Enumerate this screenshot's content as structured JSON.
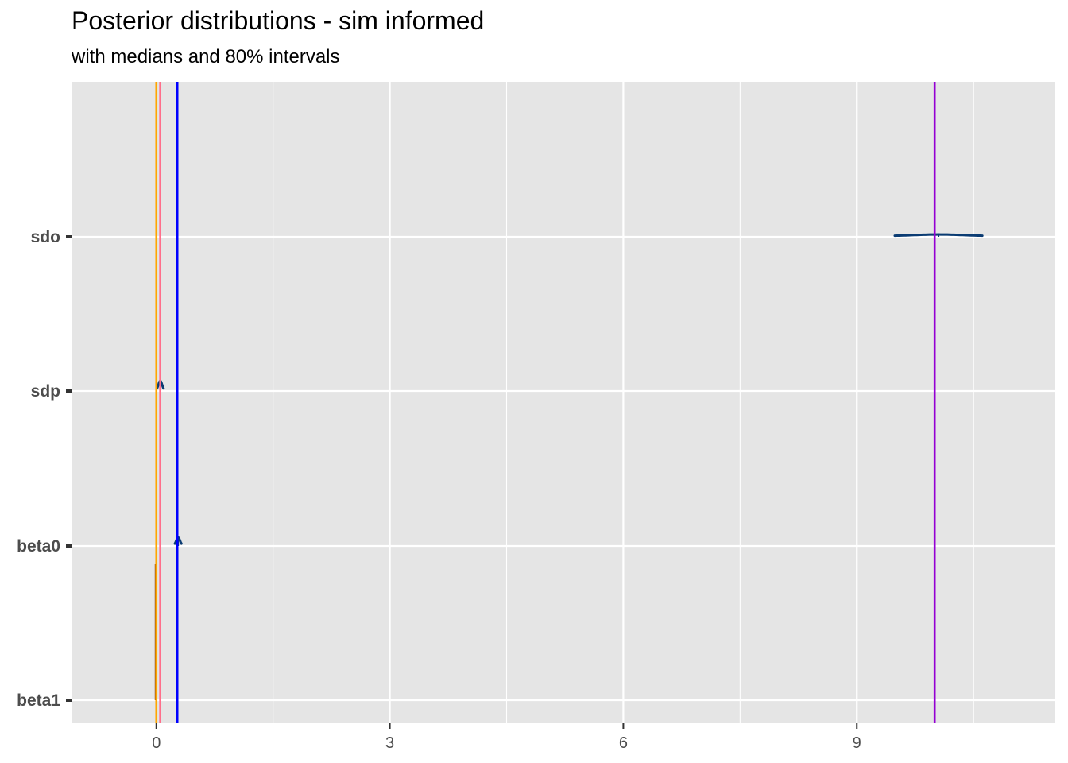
{
  "chart_data": {
    "type": "ridgeline",
    "title": "Posterior distributions - sim informed",
    "subtitle": "with medians and 80% intervals",
    "xlabel": "",
    "ylabel": "",
    "xlim": [
      -1.09,
      11.55
    ],
    "x_ticks": [
      0,
      3,
      6,
      9
    ],
    "x_minor_ticks": [
      1.5,
      4.5,
      7.5,
      10.5
    ],
    "grid": true,
    "parameters": [
      "sdo",
      "sdp",
      "beta0",
      "beta1"
    ],
    "distributions": [
      {
        "name": "sdo",
        "median": 10.05,
        "interval80": [
          9.6,
          10.4
        ],
        "height": 0.01
      },
      {
        "name": "sdp",
        "median": 0.05,
        "interval80": [
          0.02,
          0.08
        ],
        "height": 0.06
      },
      {
        "name": "beta0",
        "median": 0.28,
        "interval80": [
          0.25,
          0.31
        ],
        "height": 0.05
      },
      {
        "name": "beta1",
        "median": 0.0,
        "interval80": [
          -0.01,
          0.01
        ],
        "height": 0.9
      }
    ],
    "reference_lines": [
      {
        "x": 0.0,
        "color": "#FFA500"
      },
      {
        "x": 0.05,
        "color": "#FF6E8A"
      },
      {
        "x": 0.27,
        "color": "#0000FF"
      },
      {
        "x": 10.0,
        "color": "#9400D3"
      }
    ],
    "colors": {
      "panel": "#E5E5E5",
      "grid": "#FFFFFF",
      "density": "#0B3C73",
      "beta1": "#8B4513"
    }
  }
}
